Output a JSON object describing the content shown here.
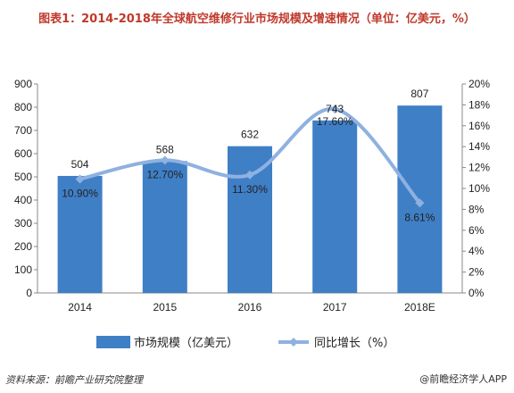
{
  "title": "图表1：2014-2018年全球航空维修行业市场规模及增速情况（单位：亿美元，%）",
  "source": "资料来源：前瞻产业研究院整理",
  "brand": "@前瞻经济学人APP",
  "colors": {
    "bar": "#3f7fc6",
    "line": "#8fb1e0",
    "title": "#c0392b"
  },
  "chart_data": {
    "type": "bar",
    "categories": [
      "2014",
      "2015",
      "2016",
      "2017",
      "2018E"
    ],
    "series": [
      {
        "name": "市场规模（亿美元）",
        "type": "bar",
        "axis": "left",
        "values": [
          504,
          568,
          632,
          743,
          807
        ],
        "labels": [
          "504",
          "568",
          "632",
          "743",
          "807"
        ]
      },
      {
        "name": "同比增长（%）",
        "type": "line",
        "axis": "right",
        "values": [
          10.9,
          12.7,
          11.3,
          17.6,
          8.61
        ],
        "labels": [
          "10.90%",
          "12.70%",
          "11.30%",
          "17.60%",
          "8.61%"
        ]
      }
    ],
    "ylim_left": [
      0,
      900
    ],
    "yticks_left": [
      "0",
      "100",
      "200",
      "300",
      "400",
      "500",
      "600",
      "700",
      "800",
      "900"
    ],
    "ylim_right": [
      0,
      20
    ],
    "yticks_right": [
      "0%",
      "2%",
      "4%",
      "6%",
      "8%",
      "10%",
      "12%",
      "14%",
      "16%",
      "18%",
      "20%"
    ],
    "grid": false,
    "legend": "bottom"
  }
}
